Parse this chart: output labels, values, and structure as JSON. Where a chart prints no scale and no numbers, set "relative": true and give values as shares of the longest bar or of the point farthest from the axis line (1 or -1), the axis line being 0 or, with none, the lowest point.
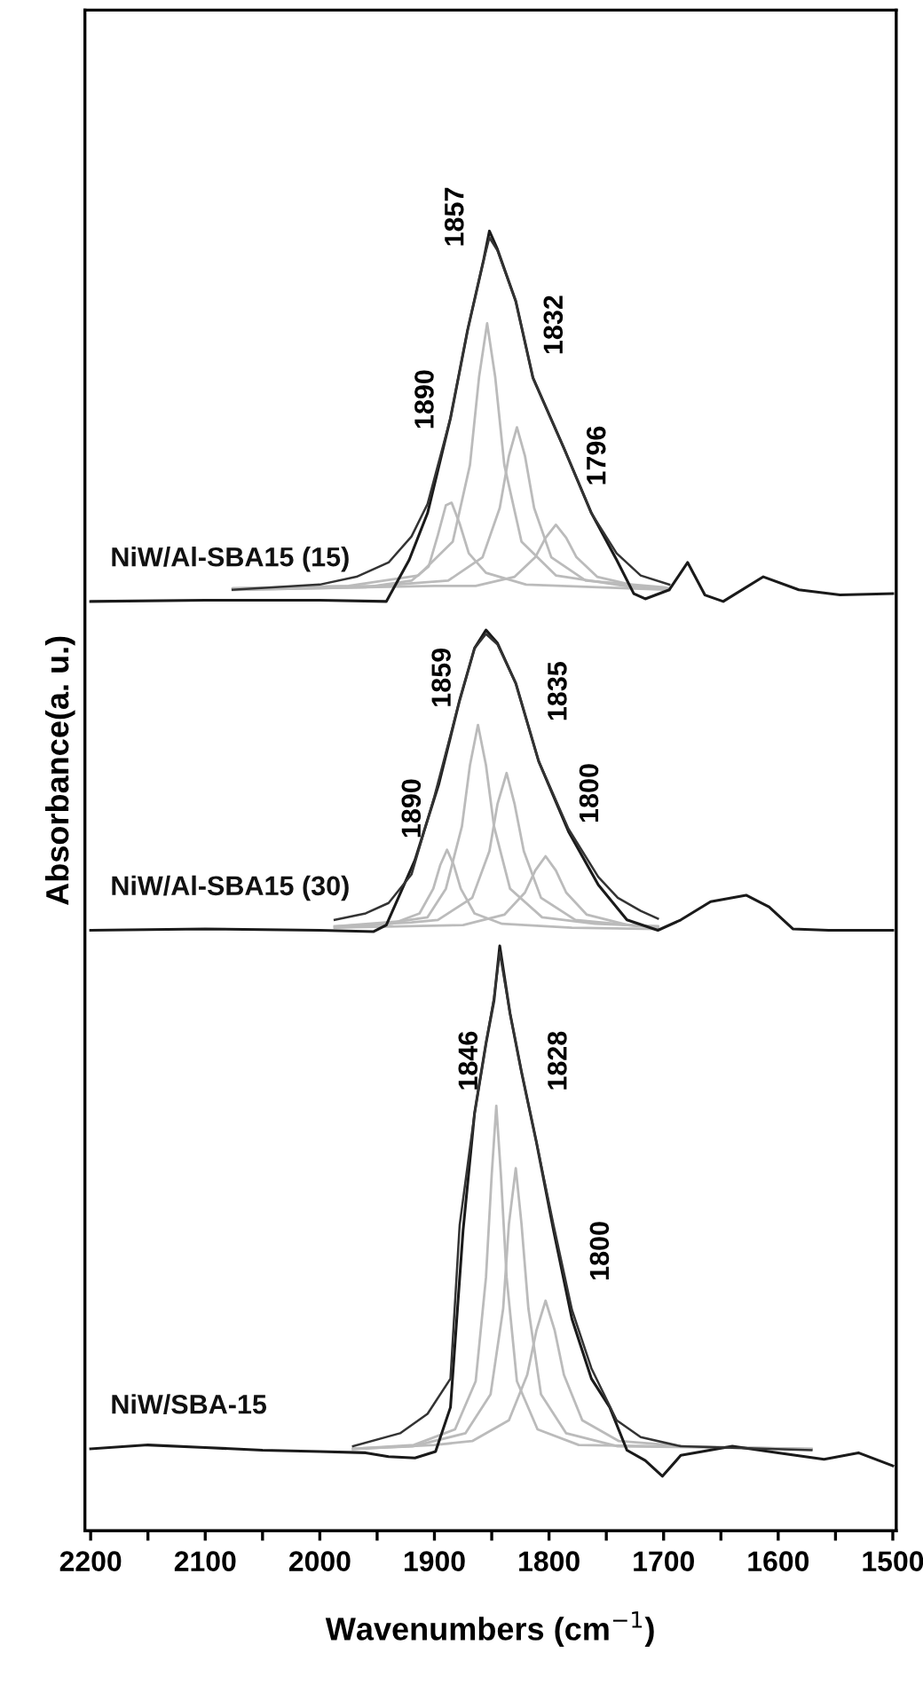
{
  "chart_data": {
    "type": "line",
    "relative": true,
    "xlabel": "Wavenumbers (cm$^{−1}$)",
    "ylabel": "Absorbance(a. u.)",
    "xlim": [
      2205,
      1497
    ],
    "xticks": [
      2200,
      {
        "value": 2150,
        "label": null
      },
      2100,
      {
        "value": 2050,
        "label": null
      },
      2000,
      {
        "value": 1950,
        "label": null
      },
      1900,
      {
        "value": 1850,
        "label": null
      },
      1800,
      {
        "value": 1750,
        "label": null
      },
      1700,
      {
        "value": 1650,
        "label": null
      },
      1600,
      {
        "value": 1550,
        "label": null
      },
      1500
    ],
    "tick_labels": "x",
    "grid": false,
    "legend": false,
    "marker": "none",
    "line_style": "solid",
    "series": [
      {
        "name": "NiW/Al-SBA15 (15)",
        "color": "#1a1a1a",
        "x": [
          2200,
          2100,
          2000,
          1942,
          1922,
          1906,
          1886,
          1871,
          1857,
          1852,
          1845,
          1829,
          1814,
          1787,
          1763,
          1741,
          1726,
          1716,
          1695,
          1679,
          1664,
          1648,
          1613,
          1582,
          1546,
          1500
        ],
        "values": [
          0.715,
          0.716,
          0.716,
          0.715,
          0.747,
          0.783,
          0.856,
          0.924,
          0.978,
          1.0,
          0.986,
          0.946,
          0.887,
          0.833,
          0.783,
          0.747,
          0.721,
          0.717,
          0.724,
          0.745,
          0.72,
          0.715,
          0.734,
          0.724,
          0.72,
          0.721
        ]
      },
      {
        "color": "#333333",
        "x": [
          2076,
          2000,
          1968,
          1940,
          1920,
          1906,
          1886,
          1871,
          1857,
          1852,
          1845,
          1829,
          1814,
          1787,
          1763,
          1741,
          1720,
          1695
        ],
        "values": [
          0.724,
          0.728,
          0.734,
          0.745,
          0.765,
          0.79,
          0.856,
          0.924,
          0.978,
          0.995,
          0.985,
          0.946,
          0.887,
          0.833,
          0.783,
          0.752,
          0.735,
          0.728
        ]
      },
      {
        "color": "#bbbbbb",
        "x": [
          2076,
          1960,
          1920,
          1905,
          1897,
          1890,
          1885,
          1878,
          1870,
          1855,
          1820,
          1695
        ],
        "values": [
          0.724,
          0.726,
          0.731,
          0.742,
          0.766,
          0.789,
          0.791,
          0.775,
          0.752,
          0.737,
          0.728,
          0.724
        ]
      },
      {
        "color": "#bbbbbb",
        "x": [
          2076,
          1975,
          1914,
          1884,
          1869,
          1861,
          1854,
          1847,
          1839,
          1824,
          1794,
          1734,
          1695
        ],
        "values": [
          0.725,
          0.727,
          0.735,
          0.761,
          0.82,
          0.888,
          0.929,
          0.888,
          0.82,
          0.761,
          0.735,
          0.727,
          0.725
        ]
      },
      {
        "color": "#bbbbbb",
        "x": [
          2076,
          1950,
          1888,
          1858,
          1843,
          1835,
          1828,
          1821,
          1813,
          1798,
          1768,
          1700,
          1695
        ],
        "values": [
          0.725,
          0.727,
          0.731,
          0.749,
          0.787,
          0.827,
          0.849,
          0.827,
          0.787,
          0.749,
          0.731,
          0.726,
          0.725
        ]
      },
      {
        "color": "#bbbbbb",
        "x": [
          2076,
          1900,
          1864,
          1830,
          1812,
          1803,
          1794,
          1785,
          1776,
          1758,
          1724,
          1695
        ],
        "values": [
          0.724,
          0.727,
          0.727,
          0.734,
          0.749,
          0.764,
          0.774,
          0.764,
          0.749,
          0.734,
          0.727,
          0.724
        ]
      },
      {
        "name": "NiW/Al-SBA15 (30)",
        "color": "#1a1a1a",
        "x": [
          2200,
          2100,
          2000,
          1953,
          1942,
          1917,
          1896,
          1878,
          1865,
          1855,
          1845,
          1829,
          1809,
          1783,
          1757,
          1732,
          1705,
          1685,
          1659,
          1628,
          1608,
          1587,
          1556,
          1500
        ],
        "values": [
          0.462,
          0.463,
          0.462,
          0.461,
          0.466,
          0.516,
          0.575,
          0.639,
          0.679,
          0.693,
          0.683,
          0.652,
          0.592,
          0.538,
          0.497,
          0.47,
          0.462,
          0.47,
          0.484,
          0.489,
          0.48,
          0.463,
          0.462,
          0.462
        ]
      },
      {
        "color": "#333333",
        "x": [
          1987,
          1960,
          1940,
          1920,
          1900,
          1878,
          1865,
          1855,
          1845,
          1829,
          1809,
          1783,
          1757,
          1740,
          1720,
          1705
        ],
        "values": [
          0.47,
          0.475,
          0.483,
          0.505,
          0.565,
          0.639,
          0.679,
          0.69,
          0.682,
          0.652,
          0.592,
          0.54,
          0.503,
          0.487,
          0.477,
          0.471
        ]
      },
      {
        "color": "#bbbbbb",
        "x": [
          1987,
          1937,
          1913,
          1901,
          1895,
          1889,
          1883,
          1877,
          1865,
          1841,
          1780,
          1705
        ],
        "values": [
          0.464,
          0.467,
          0.475,
          0.494,
          0.512,
          0.524,
          0.512,
          0.494,
          0.475,
          0.467,
          0.464,
          0.463
        ]
      },
      {
        "color": "#bbbbbb",
        "x": [
          1987,
          1930,
          1906,
          1890,
          1876,
          1869,
          1862,
          1855,
          1848,
          1834,
          1806,
          1760,
          1705
        ],
        "values": [
          0.465,
          0.469,
          0.472,
          0.494,
          0.542,
          0.589,
          0.62,
          0.589,
          0.542,
          0.494,
          0.472,
          0.467,
          0.465
        ]
      },
      {
        "color": "#bbbbbb",
        "x": [
          1987,
          1920,
          1897,
          1867,
          1852,
          1845,
          1837,
          1830,
          1822,
          1807,
          1777,
          1730,
          1705
        ],
        "values": [
          0.465,
          0.468,
          0.47,
          0.487,
          0.523,
          0.559,
          0.583,
          0.559,
          0.523,
          0.487,
          0.47,
          0.466,
          0.465
        ]
      },
      {
        "color": "#bbbbbb",
        "x": [
          1987,
          1875,
          1839,
          1821,
          1812,
          1803,
          1794,
          1785,
          1767,
          1731,
          1705
        ],
        "values": [
          0.464,
          0.466,
          0.474,
          0.491,
          0.508,
          0.519,
          0.508,
          0.491,
          0.474,
          0.466,
          0.464
        ]
      },
      {
        "name": "NiW/SBA-15",
        "color": "#1a1a1a",
        "x": [
          2200,
          2150,
          2100,
          2050,
          2000,
          1960,
          1940,
          1917,
          1899,
          1886,
          1875,
          1865,
          1855,
          1848,
          1843,
          1834,
          1824,
          1811,
          1796,
          1780,
          1763,
          1747,
          1732,
          1716,
          1701,
          1685,
          1640,
          1600,
          1560,
          1530,
          1500
        ],
        "values": [
          0.063,
          0.066,
          0.064,
          0.062,
          0.061,
          0.06,
          0.057,
          0.056,
          0.061,
          0.095,
          0.231,
          0.321,
          0.375,
          0.408,
          0.45,
          0.398,
          0.353,
          0.299,
          0.231,
          0.163,
          0.117,
          0.095,
          0.062,
          0.054,
          0.042,
          0.058,
          0.065,
          0.06,
          0.055,
          0.06,
          0.05
        ]
      },
      {
        "color": "#333333",
        "x": [
          1971,
          1930,
          1906,
          1886,
          1878,
          1865,
          1855,
          1848,
          1843,
          1834,
          1824,
          1811,
          1796,
          1780,
          1763,
          1741,
          1720,
          1685,
          1571
        ],
        "values": [
          0.065,
          0.075,
          0.09,
          0.117,
          0.235,
          0.321,
          0.375,
          0.41,
          0.445,
          0.398,
          0.353,
          0.299,
          0.235,
          0.17,
          0.125,
          0.085,
          0.072,
          0.065,
          0.062
        ]
      },
      {
        "color": "#bbbbbb",
        "x": [
          1971,
          1918,
          1882,
          1864,
          1855,
          1850,
          1846,
          1842,
          1837,
          1828,
          1810,
          1774,
          1571
        ],
        "values": [
          0.063,
          0.066,
          0.078,
          0.115,
          0.195,
          0.274,
          0.327,
          0.274,
          0.195,
          0.115,
          0.078,
          0.066,
          0.063
        ]
      },
      {
        "color": "#bbbbbb",
        "x": [
          1971,
          1919,
          1873,
          1851,
          1840,
          1835,
          1829,
          1824,
          1818,
          1807,
          1785,
          1740,
          1571
        ],
        "values": [
          0.063,
          0.065,
          0.075,
          0.105,
          0.171,
          0.236,
          0.279,
          0.236,
          0.171,
          0.105,
          0.075,
          0.065,
          0.063
        ]
      },
      {
        "color": "#bbbbbb",
        "x": [
          1971,
          1900,
          1867,
          1835,
          1819,
          1811,
          1803,
          1795,
          1787,
          1771,
          1739,
          1680,
          1571
        ],
        "values": [
          0.063,
          0.066,
          0.069,
          0.085,
          0.12,
          0.154,
          0.177,
          0.154,
          0.12,
          0.085,
          0.069,
          0.065,
          0.063
        ]
      }
    ],
    "annotations": [
      "1857",
      "1890",
      "1832",
      "1796",
      "1859",
      "1835",
      "1890",
      "1800",
      "1846",
      "1828",
      "1800"
    ]
  }
}
